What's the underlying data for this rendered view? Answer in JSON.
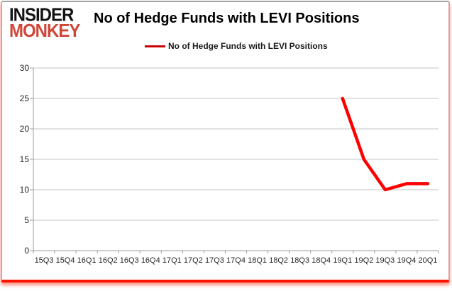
{
  "logo": {
    "line1": "INSIDER",
    "line2": "MONKEY",
    "color_line1": "#141414",
    "color_line2": "#cf4636"
  },
  "header": {
    "title": "No of Hedge Funds with LEVI Positions"
  },
  "legend": {
    "label": "No of Hedge Funds with LEVI Positions",
    "swatch_color": "#cc0000"
  },
  "chart_data": {
    "type": "line",
    "title": "No of Hedge Funds with LEVI Positions",
    "categories": [
      "15Q3",
      "15Q4",
      "16Q1",
      "16Q2",
      "16Q3",
      "16Q4",
      "17Q1",
      "17Q2",
      "17Q3",
      "17Q4",
      "18Q1",
      "18Q2",
      "18Q3",
      "18Q4",
      "19Q1",
      "19Q2",
      "19Q3",
      "19Q4",
      "20Q1"
    ],
    "series": [
      {
        "name": "No of Hedge Funds with LEVI Positions",
        "color": "#ff0000",
        "values": [
          null,
          null,
          null,
          null,
          null,
          null,
          null,
          null,
          null,
          null,
          null,
          null,
          null,
          null,
          25,
          15,
          10,
          11,
          11
        ]
      }
    ],
    "xlabel": "",
    "ylabel": "",
    "ylim": [
      0,
      30
    ],
    "ytick_step": 5,
    "grid": "horizontal",
    "legend_position": "top-center",
    "gridline_color": "#c6c6c6",
    "axis_color": "#9b9b9b",
    "tick_label_color": "#262626"
  }
}
